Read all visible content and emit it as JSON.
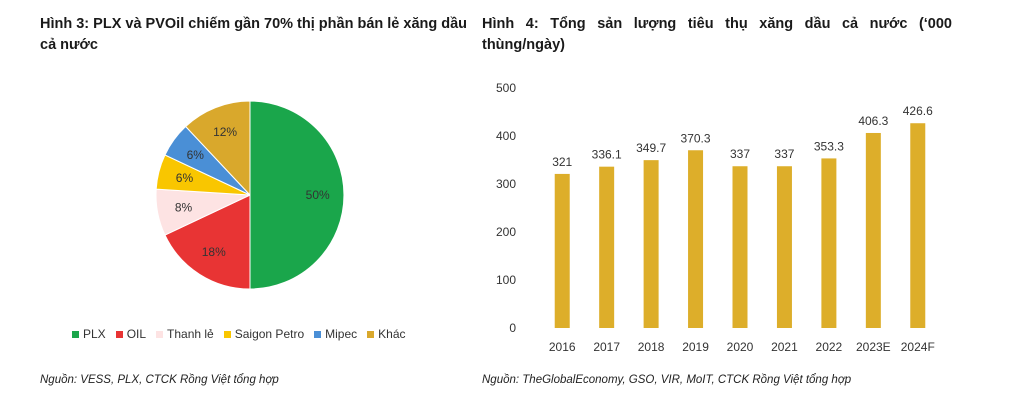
{
  "figure1": {
    "title": "Hình 3: PLX và PVOil chiếm gần 70% thị phần bán lẻ xăng dầu cả nước",
    "source": "Nguồn: VESS, PLX, CTCK Rồng Việt tổng hợp"
  },
  "figure2": {
    "title": "Hình 4: Tổng sản lượng tiêu thụ xăng dầu cả nước (‘000 thùng/ngày)",
    "source": "Nguồn: TheGlobalEconomy, GSO, VIR, MoIT, CTCK Rồng Việt tổng hợp"
  },
  "chart_data": [
    {
      "type": "pie",
      "title": "Hình 3: PLX và PVOil chiếm gần 70% thị phần bán lẻ xăng dầu cả nước",
      "legend_position": "bottom",
      "slices": [
        {
          "label": "PLX",
          "value": 50,
          "display": "50%",
          "color": "#1aa64b"
        },
        {
          "label": "OIL",
          "value": 18,
          "display": "18%",
          "color": "#e83434"
        },
        {
          "label": "Thanh lẻ",
          "value": 8,
          "display": "8%",
          "color": "#fde3e3"
        },
        {
          "label": "Saigon Petro",
          "value": 6,
          "display": "6%",
          "color": "#f9c600"
        },
        {
          "label": "Mipec",
          "value": 6,
          "display": "6%",
          "color": "#4a8fd6"
        },
        {
          "label": "Khác",
          "value": 12,
          "display": "12%",
          "color": "#d9a82c"
        }
      ]
    },
    {
      "type": "bar",
      "title": "Hình 4: Tổng sản lượng tiêu thụ xăng dầu cả nước (‘000 thùng/ngày)",
      "categories": [
        "2016",
        "2017",
        "2018",
        "2019",
        "2020",
        "2021",
        "2022",
        "2023E",
        "2024F"
      ],
      "values": [
        321,
        336.1,
        349.7,
        370.3,
        337,
        337,
        353.3,
        406.3,
        426.6
      ],
      "value_labels": [
        "321",
        "336.1",
        "349.7",
        "370.3",
        "337",
        "337",
        "353.3",
        "406.3",
        "426.6"
      ],
      "ylim": [
        0,
        500
      ],
      "yticks": [
        "0",
        "100",
        "200",
        "300",
        "400",
        "500"
      ],
      "bar_color": "#ddae2a",
      "grid": false
    }
  ]
}
